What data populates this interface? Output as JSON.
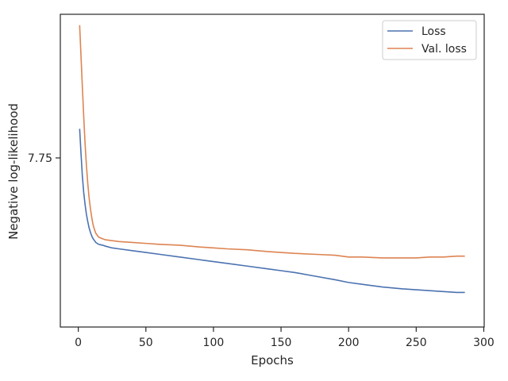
{
  "chart_data": {
    "type": "line",
    "xlabel": "Epochs",
    "ylabel": "Negative log-likelihood",
    "xlim": [
      -13.3,
      300.3
    ],
    "ylim": [
      7.564,
      7.908
    ],
    "xticks": [
      0,
      50,
      100,
      150,
      200,
      250,
      300
    ],
    "xtick_labels": [
      "0",
      "50",
      "100",
      "150",
      "200",
      "250",
      "300"
    ],
    "yticks": [
      7.75
    ],
    "ytick_labels": [
      "7.75"
    ],
    "grid": false,
    "legend_position": "top-right",
    "series": [
      {
        "name": "Loss",
        "color": "#4c72b0",
        "x": [
          1,
          2,
          3,
          4,
          5,
          6,
          7,
          8,
          9,
          10,
          11,
          12,
          13,
          15,
          18,
          20,
          25,
          30,
          40,
          50,
          60,
          75,
          90,
          100,
          110,
          125,
          140,
          150,
          160,
          175,
          190,
          200,
          210,
          225,
          240,
          250,
          260,
          270,
          280,
          286
        ],
        "values": [
          7.782,
          7.755,
          7.73,
          7.712,
          7.699,
          7.688,
          7.68,
          7.673,
          7.668,
          7.664,
          7.661,
          7.659,
          7.657,
          7.655,
          7.654,
          7.653,
          7.651,
          7.65,
          7.648,
          7.646,
          7.644,
          7.641,
          7.638,
          7.636,
          7.634,
          7.631,
          7.628,
          7.626,
          7.624,
          7.62,
          7.616,
          7.613,
          7.611,
          7.608,
          7.606,
          7.605,
          7.604,
          7.603,
          7.602,
          7.602
        ]
      },
      {
        "name": "Val. loss",
        "color": "#dd8452",
        "x": [
          1,
          2,
          3,
          4,
          5,
          6,
          7,
          8,
          9,
          10,
          11,
          12,
          13,
          15,
          18,
          20,
          25,
          30,
          40,
          50,
          60,
          75,
          90,
          100,
          110,
          125,
          140,
          150,
          160,
          175,
          190,
          200,
          210,
          225,
          240,
          250,
          260,
          270,
          280,
          286
        ],
        "values": [
          7.896,
          7.862,
          7.828,
          7.796,
          7.766,
          7.742,
          7.722,
          7.706,
          7.694,
          7.684,
          7.676,
          7.671,
          7.667,
          7.663,
          7.661,
          7.66,
          7.659,
          7.658,
          7.657,
          7.656,
          7.655,
          7.654,
          7.652,
          7.651,
          7.65,
          7.649,
          7.647,
          7.646,
          7.645,
          7.644,
          7.643,
          7.641,
          7.641,
          7.64,
          7.64,
          7.64,
          7.641,
          7.641,
          7.642,
          7.642
        ]
      }
    ]
  }
}
